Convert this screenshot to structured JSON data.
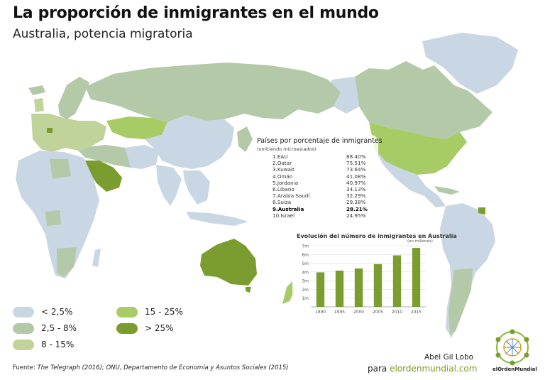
{
  "header": {
    "title": "La proporción de inmigrantes en el mundo",
    "subtitle": "Australia, potencia migratoria"
  },
  "colors": {
    "lt_2_5": "#c9d7e4",
    "2_5_8": "#b4c9a8",
    "8_15": "#bfd39a",
    "15_25": "#a7cc66",
    "gt_25": "#7b9c2f",
    "water": "#ffffff"
  },
  "legend": {
    "items": [
      {
        "label": "< 2,5%",
        "color": "#c9d7e4"
      },
      {
        "label": "2,5 - 8%",
        "color": "#b4c9a8"
      },
      {
        "label": "8 - 15%",
        "color": "#bfd39a"
      },
      {
        "label": "15 - 25%",
        "color": "#a7cc66"
      },
      {
        "label": "> 25%",
        "color": "#7b9c2f"
      }
    ]
  },
  "ranking": {
    "title": "Países por porcentaje de inmigrantes",
    "note": "(omitiendo microestados)",
    "items": [
      {
        "label": "1.EAU",
        "value": "88.40%",
        "highlight": false
      },
      {
        "label": "2.Qatar",
        "value": "75.51%",
        "highlight": false
      },
      {
        "label": "3.Kuwait",
        "value": "73.64%",
        "highlight": false
      },
      {
        "label": "4.Omán",
        "value": "41.08%",
        "highlight": false
      },
      {
        "label": "5.Jordania",
        "value": "40.97%",
        "highlight": false
      },
      {
        "label": "6.Líbano",
        "value": "34.13%",
        "highlight": false
      },
      {
        "label": "7.Arabia Saudí",
        "value": "32.29%",
        "highlight": false
      },
      {
        "label": "8.Suiza",
        "value": "29.38%",
        "highlight": false
      },
      {
        "label": "9.Australia",
        "value": "28.21%",
        "highlight": true
      },
      {
        "label": "10.Israel",
        "value": "24.95%",
        "highlight": false
      }
    ]
  },
  "chart_data": {
    "type": "bar",
    "title": "Evolución del número de inmigrantes en Australia",
    "unit_note": "(en millones)",
    "categories": [
      "1990",
      "1995",
      "2000",
      "2005",
      "2010",
      "2015"
    ],
    "values": [
      3.95,
      4.15,
      4.4,
      4.9,
      5.9,
      6.75
    ],
    "ylim": [
      0,
      7
    ],
    "yticks": [
      "1m",
      "2m",
      "3m",
      "4m",
      "5m",
      "6m",
      "7m"
    ],
    "xlabel": "",
    "ylabel": "",
    "bar_color": "#7b9c2f",
    "grid": true
  },
  "footer": {
    "source_prefix": "Fuente: ",
    "source_italic": "The Telegraph (2016); ONU, Departamento de Economía y Asuntos Sociales (2015)",
    "author": "Abel Gil Lobo",
    "site_prefix": "para ",
    "site_domain": "elordenmundial.com",
    "logo_text": "elOrdenMundial"
  }
}
